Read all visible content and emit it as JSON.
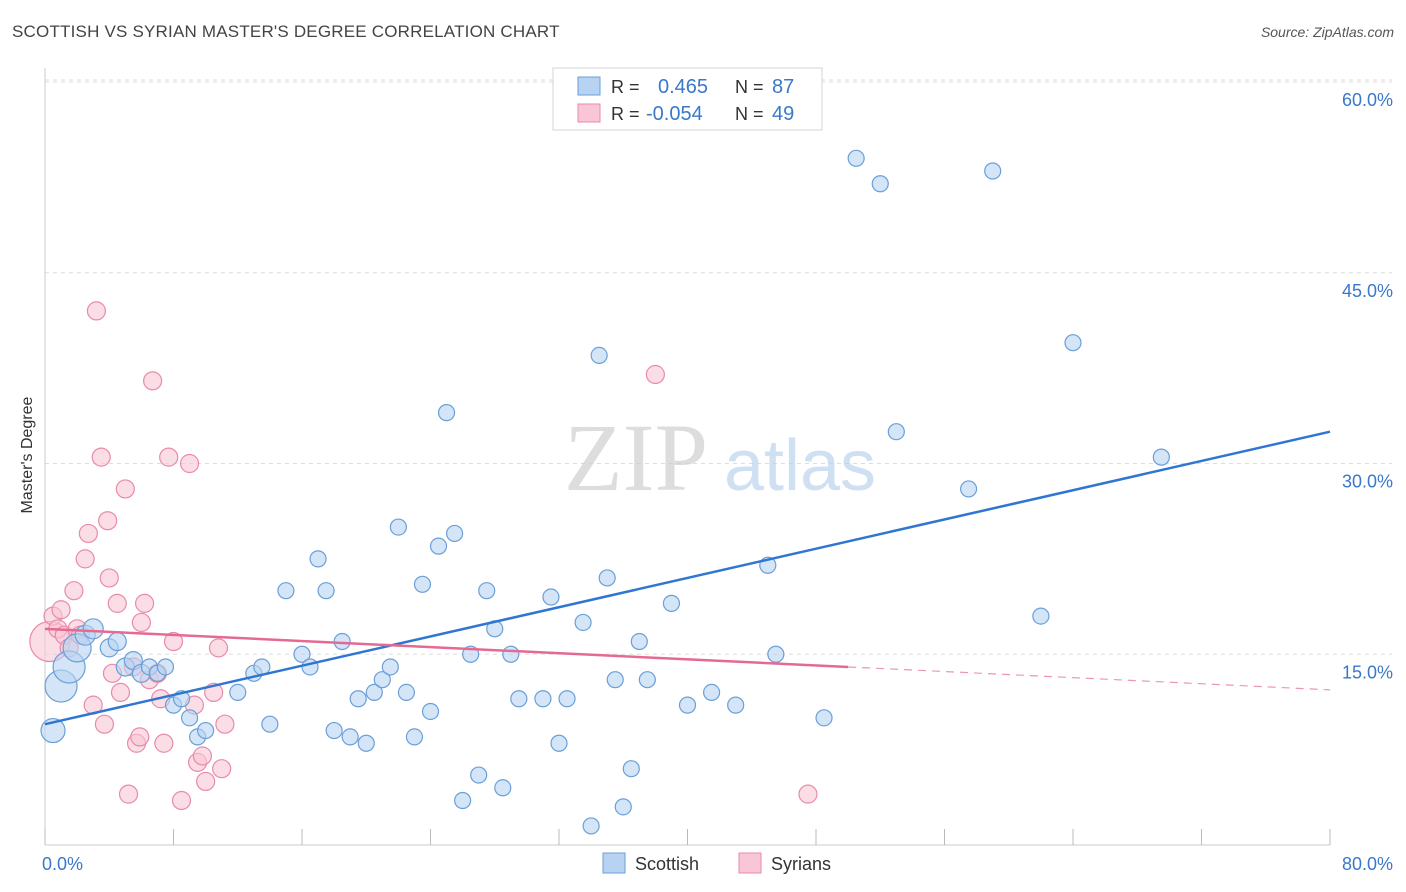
{
  "header": {
    "title": "SCOTTISH VS SYRIAN MASTER'S DEGREE CORRELATION CHART",
    "source": "Source: ZipAtlas.com"
  },
  "watermark": {
    "zip": "ZIP",
    "atlas": "atlas"
  },
  "legend_top": {
    "rows": [
      {
        "r_label": "R =",
        "r_value": "0.465",
        "n_label": "N =",
        "n_value": "87"
      },
      {
        "r_label": "R =",
        "r_value": "-0.054",
        "n_label": "N =",
        "n_value": "49"
      }
    ]
  },
  "legend_bottom": {
    "items": [
      "Scottish",
      "Syrians"
    ]
  },
  "colors": {
    "scottish_fill": "#b8d3f2",
    "scottish_stroke": "#6a9fd8",
    "scottish_line": "#2f76d2",
    "syrian_fill": "#f9c6d6",
    "syrian_stroke": "#e98aab",
    "syrian_line": "#e56a93",
    "axis_text": "#3a78c9",
    "grid": "#dddddd"
  },
  "chart_data": {
    "type": "scatter",
    "ylabel": "Master's Degree",
    "xlim": [
      0,
      80
    ],
    "ylim": [
      0,
      60
    ],
    "x_tick_labels": [
      "0.0%",
      "80.0%"
    ],
    "y_ticks": [
      15,
      30,
      45,
      60
    ],
    "y_tick_labels": [
      "15.0%",
      "30.0%",
      "45.0%",
      "60.0%"
    ],
    "grid": "horizontal dashed",
    "series": [
      {
        "name": "Scottish",
        "R": 0.465,
        "N": 87,
        "points": [
          [
            0.5,
            9.0,
            12
          ],
          [
            1.0,
            12.5,
            16
          ],
          [
            1.5,
            14.0,
            16
          ],
          [
            2.0,
            15.5,
            14
          ],
          [
            2.5,
            16.5,
            10
          ],
          [
            3.0,
            17.0,
            10
          ],
          [
            4.0,
            15.5,
            9
          ],
          [
            4.5,
            16.0,
            9
          ],
          [
            5.0,
            14.0,
            9
          ],
          [
            5.5,
            14.5,
            9
          ],
          [
            6.0,
            13.5,
            9
          ],
          [
            6.5,
            14.0,
            8
          ],
          [
            7.0,
            13.5,
            8
          ],
          [
            7.5,
            14.0,
            8
          ],
          [
            8.0,
            11.0,
            8
          ],
          [
            8.5,
            11.5,
            8
          ],
          [
            9.0,
            10.0,
            8
          ],
          [
            9.5,
            8.5,
            8
          ],
          [
            10.0,
            9.0,
            8
          ],
          [
            12.0,
            12.0,
            8
          ],
          [
            13.0,
            13.5,
            8
          ],
          [
            13.5,
            14.0,
            8
          ],
          [
            14.0,
            9.5,
            8
          ],
          [
            15.0,
            20.0,
            8
          ],
          [
            16.0,
            15.0,
            8
          ],
          [
            16.5,
            14.0,
            8
          ],
          [
            17.0,
            22.5,
            8
          ],
          [
            17.5,
            20.0,
            8
          ],
          [
            18.0,
            9.0,
            8
          ],
          [
            18.5,
            16.0,
            8
          ],
          [
            19.0,
            8.5,
            8
          ],
          [
            19.5,
            11.5,
            8
          ],
          [
            20.0,
            8.0,
            8
          ],
          [
            20.5,
            12.0,
            8
          ],
          [
            21.0,
            13.0,
            8
          ],
          [
            21.5,
            14.0,
            8
          ],
          [
            22.0,
            25.0,
            8
          ],
          [
            22.5,
            12.0,
            8
          ],
          [
            23.0,
            8.5,
            8
          ],
          [
            23.5,
            20.5,
            8
          ],
          [
            24.0,
            10.5,
            8
          ],
          [
            24.5,
            23.5,
            8
          ],
          [
            25.0,
            34.0,
            8
          ],
          [
            25.5,
            24.5,
            8
          ],
          [
            26.0,
            3.5,
            8
          ],
          [
            26.5,
            15.0,
            8
          ],
          [
            27.0,
            5.5,
            8
          ],
          [
            27.5,
            20.0,
            8
          ],
          [
            28.0,
            17.0,
            8
          ],
          [
            28.5,
            4.5,
            8
          ],
          [
            29.0,
            15.0,
            8
          ],
          [
            29.5,
            11.5,
            8
          ],
          [
            31.0,
            11.5,
            8
          ],
          [
            31.5,
            19.5,
            8
          ],
          [
            32.0,
            8.0,
            8
          ],
          [
            32.5,
            11.5,
            8
          ],
          [
            33.5,
            17.5,
            8
          ],
          [
            34.0,
            1.5,
            8
          ],
          [
            34.5,
            38.5,
            8
          ],
          [
            35.0,
            21.0,
            8
          ],
          [
            35.5,
            13.0,
            8
          ],
          [
            36.0,
            3.0,
            8
          ],
          [
            36.5,
            6.0,
            8
          ],
          [
            37.0,
            16.0,
            8
          ],
          [
            37.5,
            13.0,
            8
          ],
          [
            39.0,
            19.0,
            8
          ],
          [
            40.0,
            11.0,
            8
          ],
          [
            41.5,
            12.0,
            8
          ],
          [
            43.0,
            11.0,
            8
          ],
          [
            45.0,
            22.0,
            8
          ],
          [
            45.5,
            15.0,
            8
          ],
          [
            48.5,
            10.0,
            8
          ],
          [
            50.5,
            54.0,
            8
          ],
          [
            52.0,
            52.0,
            8
          ],
          [
            53.0,
            32.5,
            8
          ],
          [
            57.5,
            28.0,
            8
          ],
          [
            59.0,
            53.0,
            8
          ],
          [
            62.0,
            18.0,
            8
          ],
          [
            64.0,
            39.5,
            8
          ],
          [
            69.5,
            30.5,
            8
          ]
        ],
        "trend": {
          "x": [
            0,
            80
          ],
          "y": [
            9.5,
            32.5
          ]
        }
      },
      {
        "name": "Syrians",
        "R": -0.054,
        "N": 49,
        "points": [
          [
            0.3,
            16.0,
            20
          ],
          [
            0.5,
            18.0,
            9
          ],
          [
            0.8,
            17.0,
            9
          ],
          [
            1.0,
            18.5,
            9
          ],
          [
            1.2,
            16.5,
            9
          ],
          [
            1.5,
            15.5,
            9
          ],
          [
            1.8,
            20.0,
            9
          ],
          [
            2.0,
            17.0,
            9
          ],
          [
            2.2,
            16.5,
            9
          ],
          [
            2.5,
            22.5,
            9
          ],
          [
            2.7,
            24.5,
            9
          ],
          [
            3.0,
            11.0,
            9
          ],
          [
            3.2,
            42.0,
            9
          ],
          [
            3.5,
            30.5,
            9
          ],
          [
            3.7,
            9.5,
            9
          ],
          [
            3.9,
            25.5,
            9
          ],
          [
            4.0,
            21.0,
            9
          ],
          [
            4.2,
            13.5,
            9
          ],
          [
            4.5,
            19.0,
            9
          ],
          [
            4.7,
            12.0,
            9
          ],
          [
            5.0,
            28.0,
            9
          ],
          [
            5.2,
            4.0,
            9
          ],
          [
            5.5,
            14.0,
            9
          ],
          [
            5.7,
            8.0,
            9
          ],
          [
            5.9,
            8.5,
            9
          ],
          [
            6.0,
            17.5,
            9
          ],
          [
            6.2,
            19.0,
            9
          ],
          [
            6.5,
            13.0,
            9
          ],
          [
            6.7,
            36.5,
            9
          ],
          [
            7.0,
            13.5,
            9
          ],
          [
            7.2,
            11.5,
            9
          ],
          [
            7.4,
            8.0,
            9
          ],
          [
            7.7,
            30.5,
            9
          ],
          [
            8.0,
            16.0,
            9
          ],
          [
            8.5,
            3.5,
            9
          ],
          [
            9.0,
            30.0,
            9
          ],
          [
            9.3,
            11.0,
            9
          ],
          [
            9.5,
            6.5,
            9
          ],
          [
            9.8,
            7.0,
            9
          ],
          [
            10.0,
            5.0,
            9
          ],
          [
            10.5,
            12.0,
            9
          ],
          [
            10.8,
            15.5,
            9
          ],
          [
            11.0,
            6.0,
            9
          ],
          [
            11.2,
            9.5,
            9
          ],
          [
            38.0,
            37.0,
            9
          ],
          [
            47.5,
            4.0,
            9
          ]
        ],
        "trend": {
          "x": [
            0,
            50
          ],
          "y": [
            17.0,
            14.0
          ]
        },
        "trend_ext": {
          "x": [
            50,
            80
          ],
          "y": [
            14.0,
            12.2
          ]
        }
      }
    ]
  }
}
